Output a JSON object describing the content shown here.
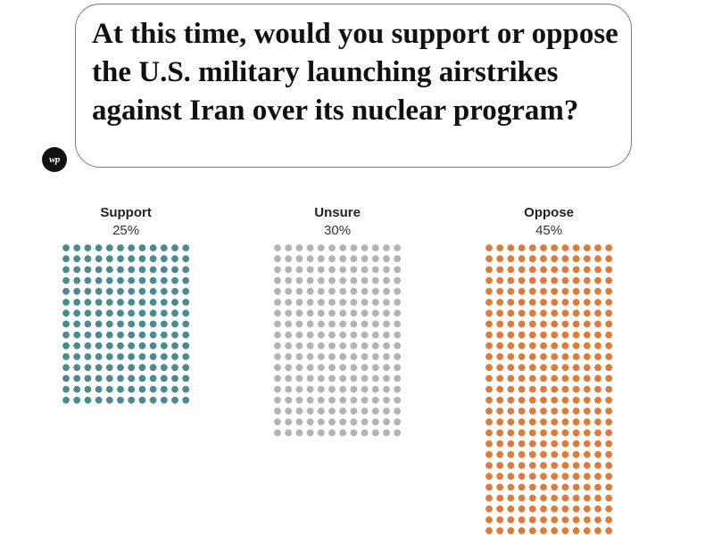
{
  "question": "At this time, would you support or oppose the U.S. military launching airstrikes against Iran over its nuclear program?",
  "logo": {
    "text": "wp",
    "icon": "washington-post-logo"
  },
  "colors": {
    "support": "#4a8a92",
    "unsure": "#b3b3b3",
    "oppose": "#df7b3a"
  },
  "chart_data": {
    "type": "unit",
    "categories": [
      "Support",
      "Unsure",
      "Oppose"
    ],
    "values": [
      25,
      30,
      45
    ],
    "value_labels": [
      "25%",
      "30%",
      "45%"
    ]
  }
}
